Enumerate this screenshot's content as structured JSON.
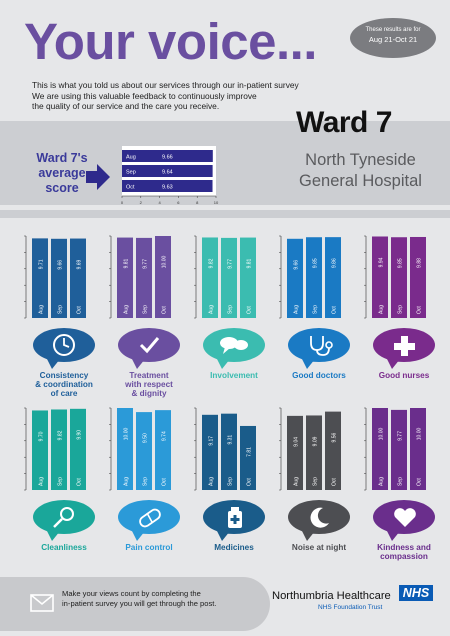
{
  "header": {
    "title": "Your voice...",
    "period_line1": "These results are for",
    "period_line2": "Aug 21-Oct 21",
    "intro": [
      "This is what you told us about our services through our in-patient survey",
      "We are using this valuable feedback to continuously improve",
      "the quality of our service and the care you receive."
    ],
    "ward": "Ward 7",
    "hospital_line1": "North Tyneside",
    "hospital_line2": "General Hospital"
  },
  "average": {
    "label": "Ward 7's average score",
    "color": "#2e2a8c",
    "ticks": [
      "0",
      "2",
      "4",
      "6",
      "8",
      "10"
    ]
  },
  "chart_data": [
    {
      "type": "bar",
      "orientation": "horizontal",
      "title": "Ward 7's average score",
      "categories": [
        "Aug",
        "Sep",
        "Oct"
      ],
      "values": [
        9.66,
        9.64,
        9.63
      ],
      "xlim": [
        0,
        10
      ]
    },
    {
      "type": "bar",
      "title": "Consistency & coordination of care",
      "categories": [
        "Aug",
        "Sep",
        "Oct"
      ],
      "values": [
        9.71,
        9.66,
        9.69
      ],
      "ylim": [
        0,
        10
      ]
    },
    {
      "type": "bar",
      "title": "Treatment with respect & dignity",
      "categories": [
        "Aug",
        "Sep",
        "Oct"
      ],
      "values": [
        9.81,
        9.77,
        10.0
      ],
      "ylim": [
        0,
        10
      ]
    },
    {
      "type": "bar",
      "title": "Involvement",
      "categories": [
        "Aug",
        "Sep",
        "Oct"
      ],
      "values": [
        9.82,
        9.77,
        9.81
      ],
      "ylim": [
        0,
        10
      ]
    },
    {
      "type": "bar",
      "title": "Good doctors",
      "categories": [
        "Aug",
        "Sep",
        "Oct"
      ],
      "values": [
        9.66,
        9.85,
        9.86
      ],
      "ylim": [
        0,
        10
      ]
    },
    {
      "type": "bar",
      "title": "Good nurses",
      "categories": [
        "Aug",
        "Sep",
        "Oct"
      ],
      "values": [
        9.94,
        9.85,
        9.88
      ],
      "ylim": [
        0,
        10
      ]
    },
    {
      "type": "bar",
      "title": "Cleanliness",
      "categories": [
        "Aug",
        "Sep",
        "Oct"
      ],
      "values": [
        9.7,
        9.82,
        9.9
      ],
      "ylim": [
        0,
        10
      ]
    },
    {
      "type": "bar",
      "title": "Pain control",
      "categories": [
        "Aug",
        "Sep",
        "Oct"
      ],
      "values": [
        10.0,
        9.5,
        9.74
      ],
      "ylim": [
        0,
        10
      ]
    },
    {
      "type": "bar",
      "title": "Medicines",
      "categories": [
        "Aug",
        "Sep",
        "Oct"
      ],
      "values": [
        9.17,
        9.31,
        7.81
      ],
      "ylim": [
        0,
        10
      ]
    },
    {
      "type": "bar",
      "title": "Noise at night",
      "categories": [
        "Aug",
        "Sep",
        "Oct"
      ],
      "values": [
        9.04,
        9.09,
        9.56
      ],
      "ylim": [
        0,
        10
      ]
    },
    {
      "type": "bar",
      "title": "Kindness and compassion",
      "categories": [
        "Aug",
        "Sep",
        "Oct"
      ],
      "values": [
        10.0,
        9.77,
        10.0
      ],
      "ylim": [
        0,
        10
      ]
    }
  ],
  "categories": [
    {
      "label": "Consistency & coordination of care",
      "label_lines": [
        "Consistency",
        "& coordination",
        "of care"
      ],
      "color": "#1f5f9a",
      "icon": "clock-icon",
      "values": [
        "9.71",
        "9.66",
        "9.69"
      ]
    },
    {
      "label": "Treatment with respect & dignity",
      "label_lines": [
        "Treatment",
        "with respect",
        "& dignity"
      ],
      "color": "#6a4fa0",
      "icon": "checkmark-icon",
      "values": [
        "9.81",
        "9.77",
        "10.00"
      ]
    },
    {
      "label": "Involvement",
      "label_lines": [
        "Involvement"
      ],
      "color": "#3bbcb0",
      "icon": "speech-bubbles-icon",
      "values": [
        "9.82",
        "9.77",
        "9.81"
      ]
    },
    {
      "label": "Good doctors",
      "label_lines": [
        "Good doctors"
      ],
      "color": "#1a7ac4",
      "icon": "stethoscope-icon",
      "values": [
        "9.66",
        "9.85",
        "9.86"
      ]
    },
    {
      "label": "Good nurses",
      "label_lines": [
        "Good nurses"
      ],
      "color": "#7a2b8c",
      "icon": "cross-icon",
      "values": [
        "9.94",
        "9.85",
        "9.88"
      ]
    },
    {
      "label": "Cleanliness",
      "label_lines": [
        "Cleanliness"
      ],
      "color": "#1aa79a",
      "icon": "magnifier-icon",
      "values": [
        "9.70",
        "9.82",
        "9.90"
      ]
    },
    {
      "label": "Pain control",
      "label_lines": [
        "Pain control"
      ],
      "color": "#2b9ad8",
      "icon": "pill-icon",
      "values": [
        "10.00",
        "9.50",
        "9.74"
      ]
    },
    {
      "label": "Medicines",
      "label_lines": [
        "Medicines"
      ],
      "color": "#1a5c8a",
      "icon": "medicine-bottle-icon",
      "values": [
        "9.17",
        "9.31",
        "7.81"
      ]
    },
    {
      "label": "Noise at night",
      "label_lines": [
        "Noise at night"
      ],
      "color": "#4d4e52",
      "icon": "moon-icon",
      "values": [
        "9.04",
        "9.09",
        "9.56"
      ]
    },
    {
      "label": "Kindness and compassion",
      "label_lines": [
        "Kindness and",
        "compassion"
      ],
      "color": "#6a2e8c",
      "icon": "heart-icon",
      "values": [
        "10.00",
        "9.77",
        "10.00"
      ]
    }
  ],
  "months": [
    "Aug",
    "Sep",
    "Oct"
  ],
  "footer": {
    "line1": "Make your views count by completing the",
    "line2": "in-patient survey you will get through the post.",
    "org": "Northumbria Healthcare",
    "nhs": "NHS",
    "trust": "NHS Foundation Trust"
  }
}
